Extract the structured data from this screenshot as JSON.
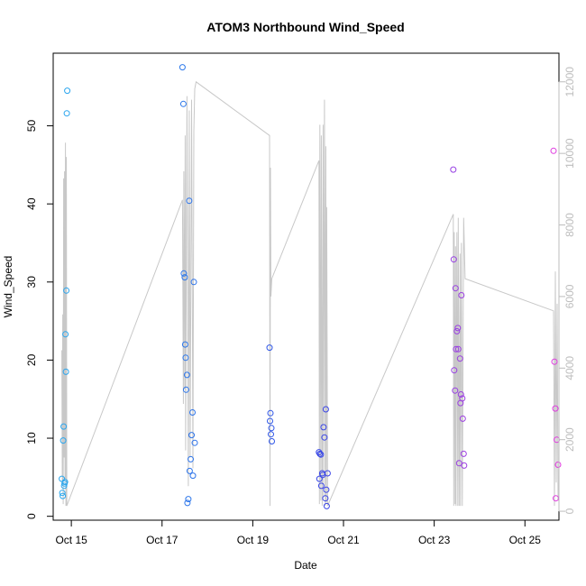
{
  "chart_data": {
    "type": "scatter",
    "title": "ATOM3 Northbound Wind_Speed",
    "xlabel": "Date",
    "ylabel": "Wind_Speed",
    "xlim": [
      14.6,
      25.75
    ],
    "ylim": [
      -0.5,
      59.3
    ],
    "y2lim": [
      -250,
      12800
    ],
    "x_ticks": [
      15,
      17,
      19,
      21,
      23,
      25
    ],
    "x_tick_labels": [
      "Oct 15",
      "Oct 17",
      "Oct 19",
      "Oct 21",
      "Oct 23",
      "Oct 25"
    ],
    "y_ticks": [
      0,
      10,
      20,
      30,
      40,
      50
    ],
    "y2_ticks": [
      0,
      2000,
      4000,
      6000,
      8000,
      10000,
      12000
    ],
    "grid": false,
    "colors": {
      "early": "#2aa7ee",
      "mid": "#2f46e6",
      "late": "#e23ae0",
      "secondary_line": "#c8c8c8",
      "secondary_axis": "#bdbdbd"
    },
    "series": [
      {
        "axis": "left",
        "style": "points",
        "x": [
          14.79,
          14.8,
          14.81,
          14.82,
          14.83,
          14.84,
          14.85,
          14.86,
          14.87,
          14.88,
          14.89,
          14.9,
          14.91,
          17.45,
          17.47,
          17.48,
          17.5,
          17.51,
          17.52,
          17.53,
          17.55,
          17.56,
          17.58,
          17.6,
          17.61,
          17.63,
          17.65,
          17.67,
          17.68,
          17.7,
          17.72,
          19.37,
          19.38,
          19.39,
          19.4,
          19.41,
          19.42,
          20.46,
          20.47,
          20.48,
          20.5,
          20.51,
          20.53,
          20.54,
          20.56,
          20.58,
          20.6,
          20.61,
          20.62,
          20.63,
          20.65,
          23.42,
          23.43,
          23.44,
          23.46,
          23.47,
          23.48,
          23.5,
          23.52,
          23.53,
          23.55,
          23.57,
          23.58,
          23.59,
          23.6,
          23.62,
          23.63,
          23.65,
          23.66,
          25.63,
          25.65,
          25.67,
          25.68,
          25.7,
          25.73
        ],
        "y": [
          4.8,
          3.0,
          2.6,
          9.7,
          11.5,
          3.9,
          4.2,
          4.4,
          23.3,
          18.5,
          28.9,
          51.6,
          54.5,
          57.5,
          52.8,
          31.1,
          30.6,
          22.0,
          20.3,
          16.2,
          18.1,
          1.7,
          2.2,
          40.4,
          5.8,
          7.3,
          10.4,
          13.3,
          5.2,
          30.0,
          9.4,
          21.6,
          12.2,
          13.2,
          10.5,
          11.3,
          9.6,
          8.2,
          4.8,
          8.0,
          7.9,
          3.9,
          5.5,
          5.3,
          11.4,
          10.1,
          2.3,
          13.7,
          3.4,
          1.3,
          5.5,
          44.4,
          32.9,
          18.7,
          16.1,
          29.2,
          21.4,
          23.7,
          24.1,
          21.4,
          6.8,
          20.2,
          14.5,
          15.6,
          28.3,
          15.1,
          12.5,
          8.0,
          6.5,
          46.8,
          19.8,
          13.8,
          2.3,
          9.8,
          6.6
        ]
      },
      {
        "axis": "right",
        "style": "line",
        "x": [
          14.79,
          14.8,
          14.81,
          14.82,
          14.83,
          14.84,
          14.85,
          14.86,
          14.87,
          14.88,
          14.89,
          14.9,
          17.45,
          17.47,
          17.48,
          17.5,
          17.51,
          17.52,
          17.55,
          17.58,
          17.6,
          17.62,
          17.65,
          17.68,
          17.7,
          17.72,
          17.75,
          19.37,
          19.38,
          19.39,
          19.4,
          19.42,
          20.46,
          20.47,
          20.48,
          20.5,
          20.51,
          20.53,
          20.55,
          20.56,
          20.58,
          20.6,
          20.61,
          20.62,
          20.63,
          20.65,
          23.42,
          23.43,
          23.44,
          23.46,
          23.47,
          23.48,
          23.5,
          23.52,
          23.53,
          23.55,
          23.57,
          23.58,
          23.6,
          23.62,
          23.65,
          23.68,
          25.63,
          25.65,
          25.67,
          25.69,
          25.71,
          25.73
        ],
        "y": [
          4500,
          800,
          5500,
          200,
          9300,
          1500,
          9500,
          900,
          10300,
          150,
          9900,
          150,
          8700,
          3000,
          9500,
          3400,
          10500,
          1700,
          11600,
          700,
          11200,
          1500,
          11500,
          1200,
          10600,
          11800,
          12000,
          10500,
          150,
          9600,
          6000,
          6500,
          9800,
          200,
          10800,
          300,
          10500,
          150,
          10800,
          400,
          11500,
          150,
          10200,
          250,
          8500,
          150,
          8300,
          150,
          7800,
          200,
          7400,
          150,
          7800,
          150,
          8200,
          150,
          7200,
          150,
          7500,
          150,
          8200,
          6500,
          5600,
          150,
          6700,
          800,
          5800,
          300
        ]
      }
    ]
  }
}
